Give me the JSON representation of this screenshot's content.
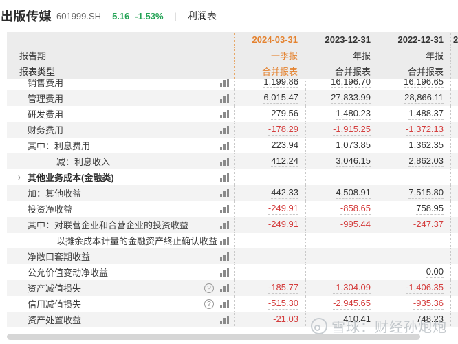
{
  "topbar": {
    "stock_name": "出版传媒",
    "stock_code": "601999.SH",
    "price": "5.16",
    "change_percent": "-1.53%",
    "divider": "|",
    "report_tab": "利润表"
  },
  "table": {
    "side_labels": {
      "period": "报告期",
      "report_type": "报表类型"
    },
    "columns": [
      {
        "date": "2024-03-31",
        "period": "一季报",
        "report_type": "合并报表",
        "highlighted": true,
        "clipped": false
      },
      {
        "date": "2023-12-31",
        "period": "年报",
        "report_type": "合并报表",
        "highlighted": false,
        "clipped": false
      },
      {
        "date": "2022-12-31",
        "period": "年报",
        "report_type": "合并报表",
        "highlighted": false,
        "clipped": false
      },
      {
        "date": "2",
        "period": "",
        "report_type": "",
        "highlighted": false,
        "clipped": true
      }
    ],
    "rows": [
      {
        "label": "销售费用",
        "indent": 0,
        "bold": false,
        "chevron": false,
        "help": false,
        "clipped_top": true,
        "values": [
          "1,199.86",
          "16,196.70",
          "16,196.65"
        ]
      },
      {
        "label": "管理费用",
        "indent": 0,
        "bold": false,
        "chevron": false,
        "help": false,
        "clipped_top": false,
        "values": [
          "6,015.47",
          "27,833.99",
          "28,866.11"
        ]
      },
      {
        "label": "研发费用",
        "indent": 0,
        "bold": false,
        "chevron": false,
        "help": false,
        "clipped_top": false,
        "values": [
          "279.56",
          "1,480.23",
          "1,488.37"
        ]
      },
      {
        "label": "财务费用",
        "indent": 0,
        "bold": false,
        "chevron": false,
        "help": false,
        "clipped_top": false,
        "values": [
          "-178.29",
          "-1,915.25",
          "-1,372.13"
        ]
      },
      {
        "label": "其中：利息费用",
        "indent": 0,
        "bold": false,
        "chevron": false,
        "help": false,
        "clipped_top": false,
        "values": [
          "223.94",
          "1,073.85",
          "1,362.35"
        ]
      },
      {
        "label": "减：利息收入",
        "indent": 1,
        "bold": false,
        "chevron": false,
        "help": false,
        "clipped_top": false,
        "values": [
          "412.24",
          "3,046.15",
          "2,862.03"
        ]
      },
      {
        "label": "其他业务成本(金融类)",
        "indent": 0,
        "bold": true,
        "chevron": true,
        "help": false,
        "clipped_top": false,
        "values": [
          "",
          "",
          ""
        ]
      },
      {
        "label": "加：其他收益",
        "indent": 0,
        "bold": false,
        "chevron": false,
        "help": false,
        "clipped_top": false,
        "values": [
          "442.33",
          "4,508.91",
          "7,515.80"
        ]
      },
      {
        "label": "投资净收益",
        "indent": 0,
        "bold": false,
        "chevron": false,
        "help": false,
        "clipped_top": false,
        "values": [
          "-249.91",
          "-858.65",
          "758.95"
        ]
      },
      {
        "label": "其中：对联营企业和合营企业的投资收益",
        "indent": 0,
        "bold": false,
        "chevron": false,
        "help": false,
        "clipped_top": false,
        "values": [
          "-249.91",
          "-995.44",
          "-247.37"
        ]
      },
      {
        "label": "以摊余成本计量的金融资产终止确认收益",
        "indent": 1,
        "bold": false,
        "chevron": false,
        "help": false,
        "clipped_top": false,
        "values": [
          "",
          "",
          ""
        ]
      },
      {
        "label": "净敞口套期收益",
        "indent": 0,
        "bold": false,
        "chevron": false,
        "help": false,
        "clipped_top": false,
        "values": [
          "",
          "",
          ""
        ]
      },
      {
        "label": "公允价值变动净收益",
        "indent": 0,
        "bold": false,
        "chevron": false,
        "help": false,
        "clipped_top": false,
        "values": [
          "",
          "",
          "0.00"
        ]
      },
      {
        "label": "资产减值损失",
        "indent": 0,
        "bold": false,
        "chevron": false,
        "help": true,
        "clipped_top": false,
        "values": [
          "-185.77",
          "-1,304.09",
          "-1,406.35"
        ]
      },
      {
        "label": "信用减值损失",
        "indent": 0,
        "bold": false,
        "chevron": false,
        "help": true,
        "clipped_top": false,
        "values": [
          "-515.30",
          "-2,945.65",
          "-935.36"
        ]
      },
      {
        "label": "资产处置收益",
        "indent": 0,
        "bold": false,
        "chevron": false,
        "help": false,
        "clipped_top": false,
        "values": [
          "-21.03",
          "410.41",
          "748.23"
        ]
      }
    ]
  },
  "watermark": {
    "text": "雪球：财经孙炮炮"
  },
  "icons": {
    "bar_chart": "bar-chart-icon",
    "help": "question-mark-icon",
    "chevron": "chevron-right-icon",
    "logo": "xueqiu-snowball-icon"
  },
  "colors": {
    "accent_orange": "#e4822f",
    "negative_red": "#d43d3d",
    "price_green": "#23a355",
    "header_bg": "#ececec",
    "stripe_gray": "#f3f3f3"
  }
}
